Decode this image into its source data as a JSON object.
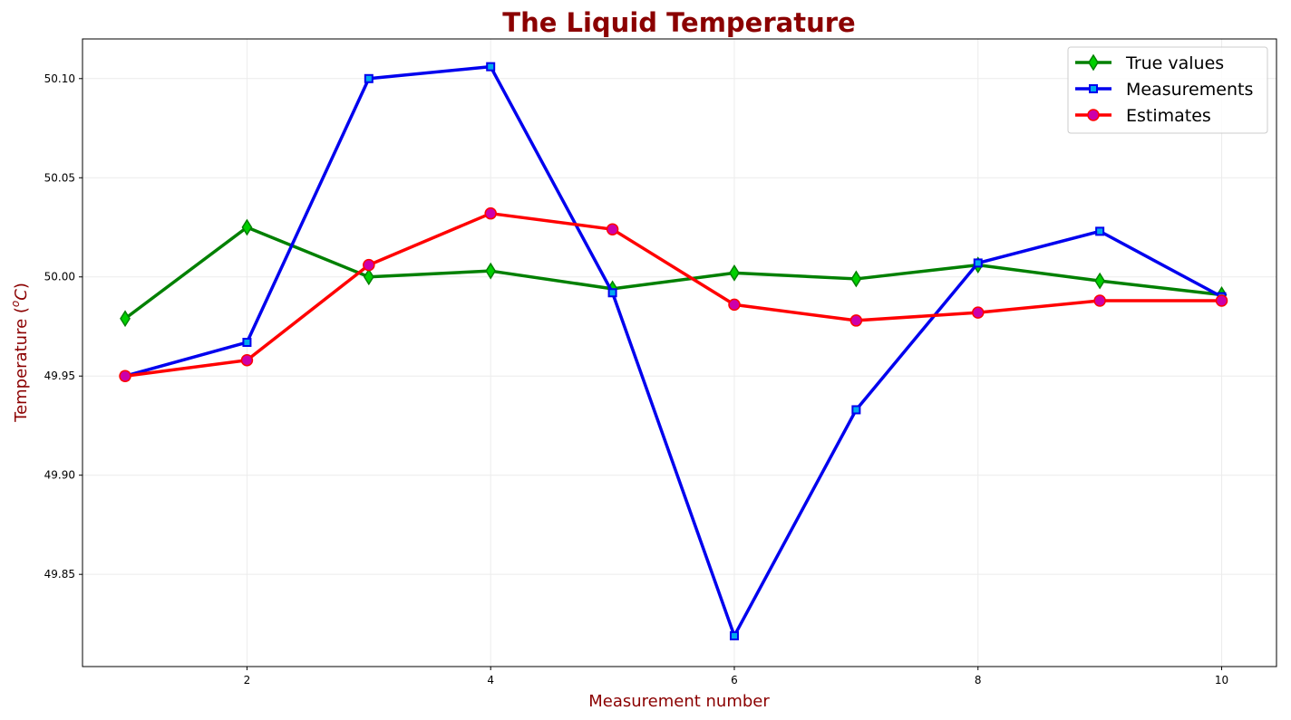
{
  "chart_data": {
    "type": "line",
    "title": "The Liquid  Temperature",
    "xlabel": "Measurement number",
    "ylabel_main": "Temperature (",
    "ylabel_sup": "o",
    "ylabel_unit": "C",
    "ylabel_close": ")",
    "x": [
      1,
      2,
      3,
      4,
      5,
      6,
      7,
      8,
      9,
      10
    ],
    "xlim": [
      0.65,
      10.45
    ],
    "ylim": [
      49.8035,
      50.12
    ],
    "xticks": [
      2,
      4,
      6,
      8,
      10
    ],
    "xtick_labels": [
      "2",
      "4",
      "6",
      "8",
      "10"
    ],
    "yticks": [
      49.85,
      49.9,
      49.95,
      50.0,
      50.05,
      50.1
    ],
    "ytick_labels": [
      "49.85",
      "49.90",
      "49.95",
      "50.00",
      "50.05",
      "50.10"
    ],
    "grid": true,
    "legend_position": "top-right",
    "series": [
      {
        "name": "True values",
        "marker": "diamond",
        "color": "#008000",
        "marker_face": "#00d000",
        "values": [
          49.979,
          50.025,
          50.0,
          50.003,
          49.994,
          50.002,
          49.999,
          50.006,
          49.998,
          49.991
        ]
      },
      {
        "name": "Measurements",
        "marker": "square",
        "color": "#0000ee",
        "marker_face": "#00aaee",
        "values": [
          49.95,
          49.967,
          50.1,
          50.106,
          49.992,
          49.819,
          49.933,
          50.007,
          50.023,
          49.99
        ]
      },
      {
        "name": "Estimates",
        "marker": "circle",
        "color": "#ff0000",
        "marker_face": "#cc00aa",
        "values": [
          49.95,
          49.958,
          50.006,
          50.032,
          50.024,
          49.986,
          49.978,
          49.982,
          49.988,
          49.988
        ]
      }
    ]
  }
}
